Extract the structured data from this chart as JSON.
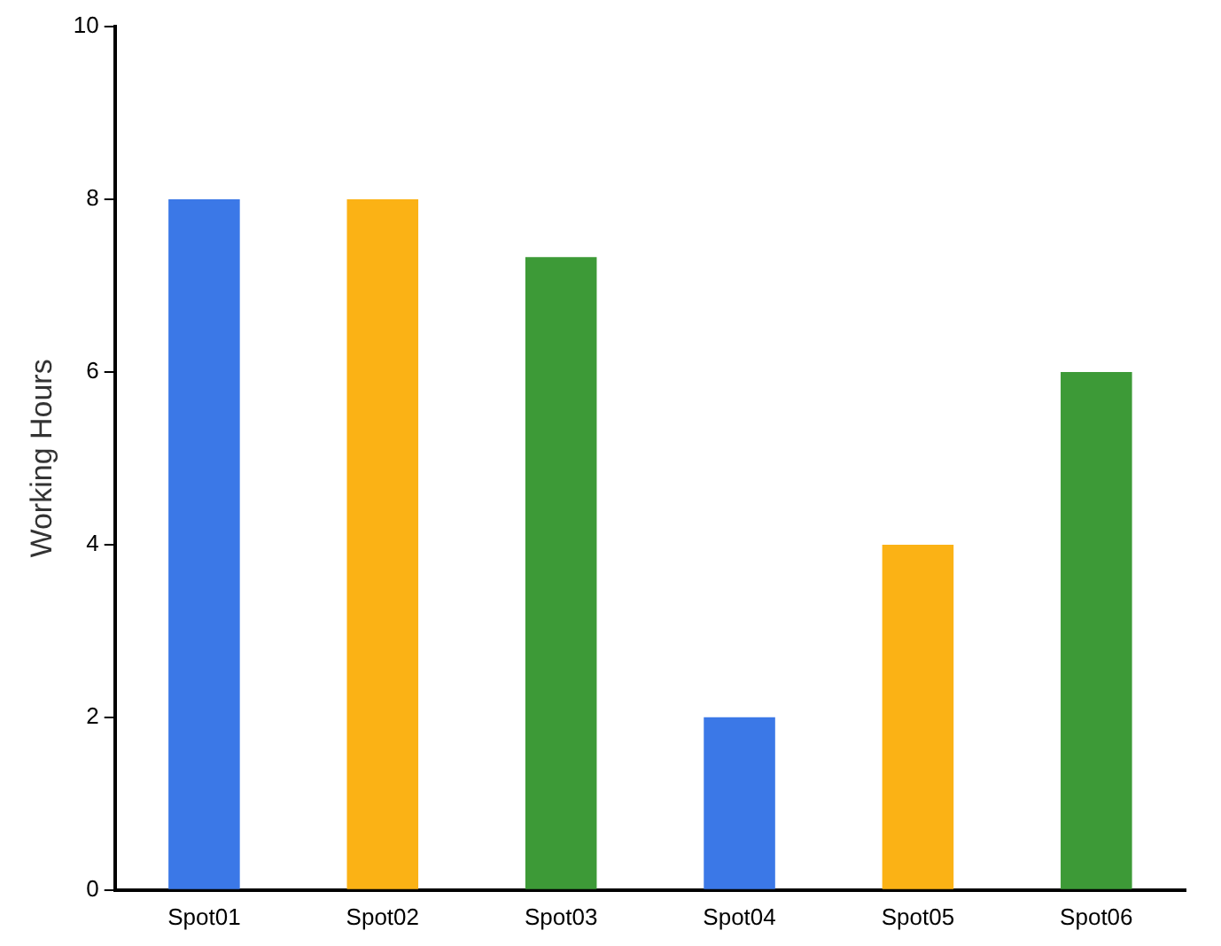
{
  "chart_data": {
    "type": "bar",
    "ylabel": "Working Hours",
    "categories": [
      "Spot01",
      "Spot02",
      "Spot03",
      "Spot04",
      "Spot05",
      "Spot06"
    ],
    "values": [
      8,
      8,
      7.33,
      2,
      4,
      6
    ],
    "colors": [
      "#3b78e7",
      "#fbb215",
      "#3d9a37",
      "#3b78e7",
      "#fbb215",
      "#3d9a37"
    ],
    "ylim": [
      0,
      10
    ],
    "yticks": [
      0,
      2,
      4,
      6,
      8,
      10
    ],
    "grid": false,
    "legend": false
  }
}
